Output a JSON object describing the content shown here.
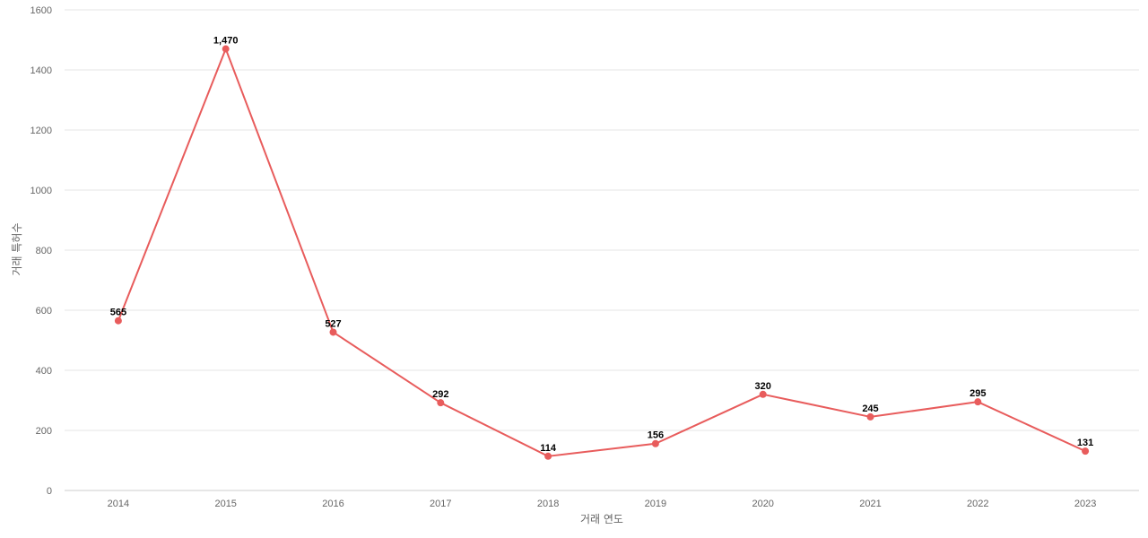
{
  "chart_data": {
    "type": "line",
    "title": "",
    "xlabel": "거래 연도",
    "ylabel": "거래 특허수",
    "ylim": [
      0,
      1600
    ],
    "yticks": [
      0,
      200,
      400,
      600,
      800,
      1000,
      1200,
      1400,
      1600
    ],
    "grid": true,
    "categories": [
      "2014",
      "2015",
      "2016",
      "2017",
      "2018",
      "2019",
      "2020",
      "2021",
      "2022",
      "2023"
    ],
    "series": [
      {
        "values": [
          565,
          1470,
          527,
          292,
          114,
          156,
          320,
          245,
          295,
          131
        ],
        "labels": [
          "565",
          "1,470",
          "527",
          "292",
          "114",
          "156",
          "320",
          "245",
          "295",
          "131"
        ],
        "color": "#e85c5c"
      }
    ]
  }
}
